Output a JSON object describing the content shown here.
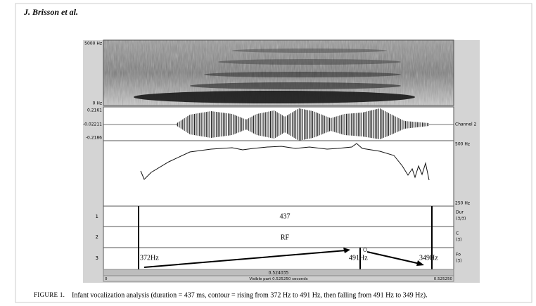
{
  "header": {
    "title": "J. Brisson et al."
  },
  "figure": {
    "spectrogram": {
      "top_label": "5000 Hz",
      "bottom_label": "0 Hz"
    },
    "waveform": {
      "top_label": "0.2161",
      "mid_label": "-0.02211",
      "bottom_label": "-0.2186",
      "channel_label": "Channel 2"
    },
    "pitch": {
      "top_label": "500 Hz",
      "bottom_label": "250 Hz"
    },
    "tiers": [
      {
        "number": "1",
        "text": "437",
        "name": "Dur",
        "count": "(3/3)"
      },
      {
        "number": "2",
        "text": "RF",
        "name": "C",
        "count": "(3)"
      },
      {
        "number": "3",
        "labels": [
          "372Hz",
          "491Hz",
          "349Hz"
        ],
        "name": "Fo",
        "count": "(3)"
      }
    ],
    "selection": "0.524035",
    "start": "0",
    "visible": "Visible part 0.525250 seconds",
    "end": "0.525250"
  },
  "caption": {
    "label": "FIGURE 1.",
    "text": "Infant vocalization analysis (duration = 437 ms, contour = rising from 372 Hz to 491 Hz, then falling from 491 Hz to 349 Hz)."
  }
}
